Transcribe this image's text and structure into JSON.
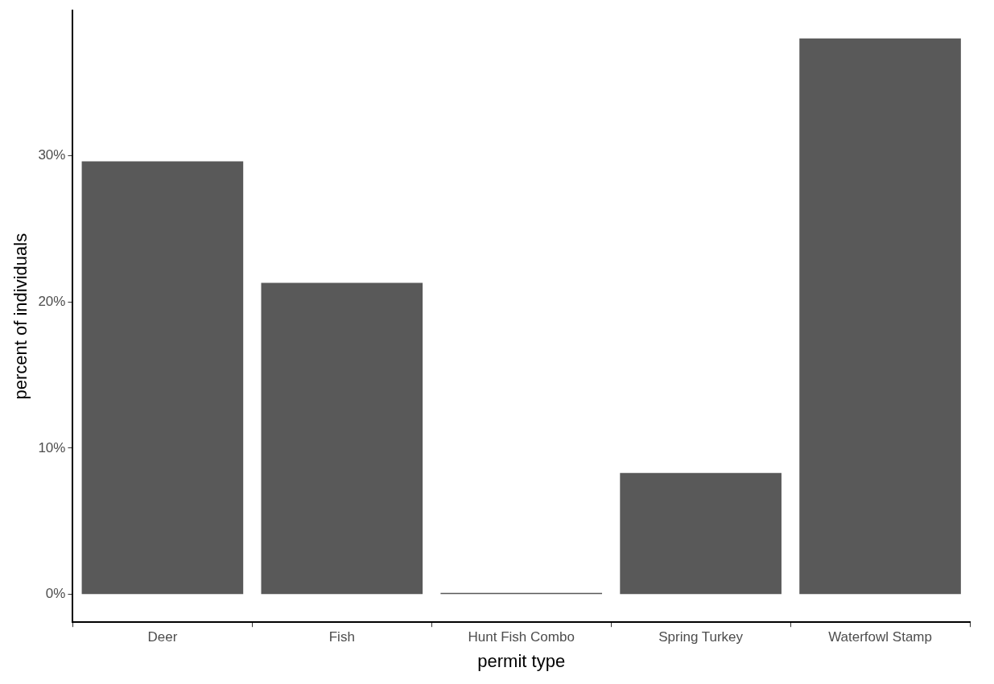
{
  "chart_data": {
    "type": "bar",
    "xlabel": "permit type",
    "ylabel": "percent of individuals",
    "categories": [
      "Deer",
      "Fish",
      "Hunt Fish Combo",
      "Spring Turkey",
      "Waterfowl Stamp"
    ],
    "values": [
      29.6,
      21.3,
      0.1,
      8.3,
      38.0
    ],
    "color": "#595959",
    "ylim": [
      -1.9,
      39.9
    ],
    "yticks": [
      {
        "value": 0,
        "label": "0%"
      },
      {
        "value": 10,
        "label": "10%"
      },
      {
        "value": 20,
        "label": "20%"
      },
      {
        "value": 30,
        "label": "30%"
      }
    ],
    "grid": false
  }
}
